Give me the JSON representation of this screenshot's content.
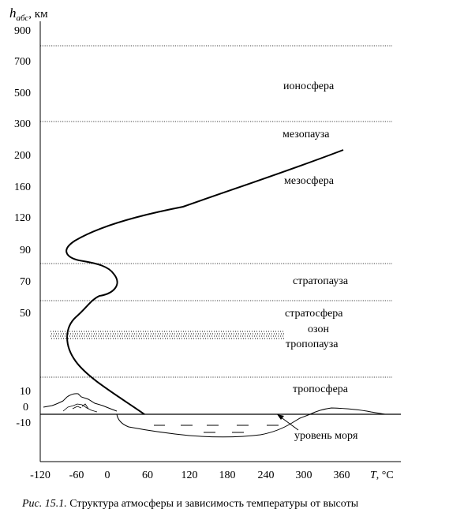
{
  "axes": {
    "y_label_main": "h",
    "y_label_sub": "абс",
    "y_label_unit": ", км",
    "x_label_main": "T",
    "x_label_unit": ", °C",
    "y_ticks": [
      "900",
      "700",
      "500",
      "300",
      "200",
      "160",
      "120",
      "90",
      "70",
      "50",
      "10",
      "0",
      "-10"
    ],
    "x_ticks": [
      "-120",
      "-60",
      "0",
      "60",
      "120",
      "180",
      "240",
      "300",
      "360"
    ]
  },
  "layers": {
    "ionosphere": "ионосфера",
    "mesopause": "мезопауза",
    "mesosphere": "мезосфера",
    "stratopause": "стратопауза",
    "stratosphere": "стратосфера",
    "ozone": "озон",
    "tropopause": "тропопауза",
    "troposphere": "тропосфера",
    "sea_level": "уровень моря"
  },
  "caption": {
    "label": "Рис. 15.1.",
    "text": " Структура атмосферы и зависимость температуры от высоты"
  },
  "colors": {
    "line": "#000000",
    "background": "#ffffff"
  }
}
